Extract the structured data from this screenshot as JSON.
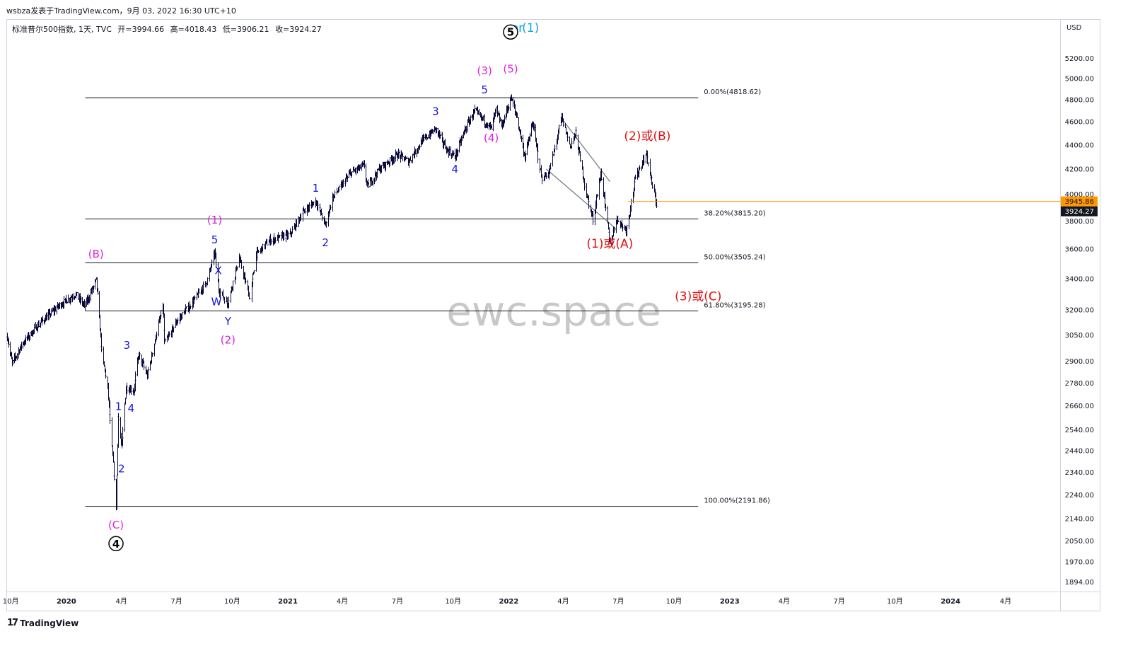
{
  "header": {
    "publish_line": "wsbza发表于TradingView.com，9月 03, 2022 16:30 UTC+10"
  },
  "ohlc": {
    "symbol_line": "标准普尔500指数, 1天, TVC",
    "open": "开=3994.66",
    "high": "高=4018.43",
    "low": "低=3906.21",
    "close": "收=3924.27"
  },
  "footer": {
    "logo": "17",
    "brand": "TradingView"
  },
  "watermark": "ewc.space",
  "colors": {
    "bars": "#0a0a3c",
    "magenta": "#e020e0",
    "blue": "#1515e0",
    "red": "#e01010",
    "cyan": "#10a8d8",
    "fib_line": "#131722",
    "price_line": "#ff9800",
    "trendline": "#787b86",
    "watermark": "#c8c8c8"
  },
  "chart_data": {
    "type": "candlestick-ohlc",
    "title": "标准普尔500指数, 1天, TVC",
    "currency": "USD",
    "y_scale": "log",
    "ylim": [
      1860,
      5600
    ],
    "x_range": [
      "2019-09-25",
      "2024-06-30"
    ],
    "y_ticks": [
      1894,
      1970,
      2050,
      2140,
      2240,
      2340,
      2440,
      2540,
      2660,
      2780,
      2900,
      3050,
      3200,
      3400,
      3600,
      3800,
      4000,
      4200,
      4400,
      4600,
      4800,
      5000,
      5200
    ],
    "y_tick_labels": [
      "1894.00",
      "1970.00",
      "2050.00",
      "2140.00",
      "2240.00",
      "2340.00",
      "2440.00",
      "2540.00",
      "2660.00",
      "2780.00",
      "2900.00",
      "3050.00",
      "3200.00",
      "3400.00",
      "3600.00",
      "3800.00",
      "4000.00",
      "4200.00",
      "4400.00",
      "4600.00",
      "4800.00",
      "5000.00",
      "5200.00"
    ],
    "x_ticks": [
      {
        "date": "2019-10-01",
        "label": "10月",
        "bold": false
      },
      {
        "date": "2020-01-01",
        "label": "2020",
        "bold": true
      },
      {
        "date": "2020-04-01",
        "label": "4月",
        "bold": false
      },
      {
        "date": "2020-07-01",
        "label": "7月",
        "bold": false
      },
      {
        "date": "2020-10-01",
        "label": "10月",
        "bold": false
      },
      {
        "date": "2021-01-01",
        "label": "2021",
        "bold": true
      },
      {
        "date": "2021-04-01",
        "label": "4月",
        "bold": false
      },
      {
        "date": "2021-07-01",
        "label": "7月",
        "bold": false
      },
      {
        "date": "2021-10-01",
        "label": "10月",
        "bold": false
      },
      {
        "date": "2022-01-01",
        "label": "2022",
        "bold": true
      },
      {
        "date": "2022-04-01",
        "label": "4月",
        "bold": false
      },
      {
        "date": "2022-07-01",
        "label": "7月",
        "bold": false
      },
      {
        "date": "2022-10-01",
        "label": "10月",
        "bold": false
      },
      {
        "date": "2023-01-01",
        "label": "2023",
        "bold": true
      },
      {
        "date": "2023-04-01",
        "label": "4月",
        "bold": false
      },
      {
        "date": "2023-07-01",
        "label": "7月",
        "bold": false
      },
      {
        "date": "2023-10-01",
        "label": "10月",
        "bold": false
      },
      {
        "date": "2024-01-01",
        "label": "2024",
        "bold": true
      },
      {
        "date": "2024-04-01",
        "label": "4月",
        "bold": false
      }
    ],
    "price_path": [
      [
        "2019-09-25",
        3040
      ],
      [
        "2019-10-03",
        2887
      ],
      [
        "2019-10-20",
        3000
      ],
      [
        "2019-11-15",
        3110
      ],
      [
        "2019-12-20",
        3230
      ],
      [
        "2020-01-15",
        3300
      ],
      [
        "2020-01-31",
        3225
      ],
      [
        "2020-02-19",
        3390
      ],
      [
        "2020-02-28",
        2950
      ],
      [
        "2020-03-09",
        2750
      ],
      [
        "2020-03-16",
        2450
      ],
      [
        "2020-03-23",
        2192
      ],
      [
        "2020-03-26",
        2620
      ],
      [
        "2020-04-01",
        2450
      ],
      [
        "2020-04-08",
        2760
      ],
      [
        "2020-04-21",
        2740
      ],
      [
        "2020-04-29",
        2940
      ],
      [
        "2020-05-13",
        2820
      ],
      [
        "2020-06-08",
        3230
      ],
      [
        "2020-06-11",
        3000
      ],
      [
        "2020-07-01",
        3130
      ],
      [
        "2020-07-31",
        3270
      ],
      [
        "2020-08-20",
        3380
      ],
      [
        "2020-09-02",
        3580
      ],
      [
        "2020-09-08",
        3330
      ],
      [
        "2020-09-23",
        3240
      ],
      [
        "2020-10-12",
        3540
      ],
      [
        "2020-10-30",
        3270
      ],
      [
        "2020-11-09",
        3560
      ],
      [
        "2020-12-01",
        3660
      ],
      [
        "2021-01-04",
        3700
      ],
      [
        "2021-01-25",
        3860
      ],
      [
        "2021-02-16",
        3950
      ],
      [
        "2021-03-04",
        3770
      ],
      [
        "2021-03-15",
        3970
      ],
      [
        "2021-04-15",
        4170
      ],
      [
        "2021-05-07",
        4230
      ],
      [
        "2021-05-12",
        4060
      ],
      [
        "2021-06-01",
        4200
      ],
      [
        "2021-07-01",
        4320
      ],
      [
        "2021-07-19",
        4260
      ],
      [
        "2021-08-10",
        4430
      ],
      [
        "2021-09-02",
        4540
      ],
      [
        "2021-09-20",
        4360
      ],
      [
        "2021-10-04",
        4300
      ],
      [
        "2021-10-20",
        4530
      ],
      [
        "2021-11-05",
        4700
      ],
      [
        "2021-11-30",
        4560
      ],
      [
        "2021-12-03",
        4540
      ],
      [
        "2021-12-10",
        4710
      ],
      [
        "2021-12-20",
        4560
      ],
      [
        "2022-01-04",
        4818
      ],
      [
        "2022-01-14",
        4640
      ],
      [
        "2022-01-27",
        4300
      ],
      [
        "2022-02-09",
        4590
      ],
      [
        "2022-02-24",
        4120
      ],
      [
        "2022-03-08",
        4170
      ],
      [
        "2022-03-29",
        4637
      ],
      [
        "2022-04-12",
        4390
      ],
      [
        "2022-04-21",
        4500
      ],
      [
        "2022-05-09",
        3990
      ],
      [
        "2022-05-20",
        3810
      ],
      [
        "2022-06-02",
        4170
      ],
      [
        "2022-06-17",
        3636
      ],
      [
        "2022-06-28",
        3820
      ],
      [
        "2022-07-14",
        3730
      ],
      [
        "2022-07-29",
        4130
      ],
      [
        "2022-08-16",
        4325
      ],
      [
        "2022-08-26",
        4060
      ],
      [
        "2022-09-02",
        3924
      ]
    ],
    "last_price": 3924.27,
    "last_price_label": "3924.27",
    "price_marker": 3945.86,
    "price_marker_label": "3945.86",
    "fibonacci": {
      "start": "2020-02-01",
      "end": "2022-11-10",
      "levels": [
        {
          "price": 4818.62,
          "label": "0.00%(4818.62)"
        },
        {
          "price": 3815.2,
          "label": "38.20%(3815.20)"
        },
        {
          "price": 3505.24,
          "label": "50.00%(3505.24)"
        },
        {
          "price": 3195.28,
          "label": "61.80%(3195.28)"
        },
        {
          "price": 2191.86,
          "label": "100.00%(2191.86)"
        }
      ]
    },
    "annotations": [
      {
        "text": "(B)",
        "date": "2020-02-19",
        "price": 3540,
        "color": "magenta"
      },
      {
        "text": "(C)",
        "date": "2020-03-23",
        "price": 2100,
        "color": "magenta"
      },
      {
        "text": "1",
        "date": "2020-03-27",
        "price": 2640,
        "color": "blue"
      },
      {
        "text": "2",
        "date": "2020-04-01",
        "price": 2340,
        "color": "blue"
      },
      {
        "text": "3",
        "date": "2020-04-10",
        "price": 2970,
        "color": "blue"
      },
      {
        "text": "4",
        "date": "2020-04-17",
        "price": 2630,
        "color": "blue"
      },
      {
        "text": "5",
        "date": "2020-09-02",
        "price": 3640,
        "color": "blue"
      },
      {
        "text": "(1)",
        "date": "2020-09-02",
        "price": 3780,
        "color": "magenta"
      },
      {
        "text": "X",
        "date": "2020-09-08",
        "price": 3430,
        "color": "blue"
      },
      {
        "text": "W",
        "date": "2020-09-05",
        "price": 3230,
        "color": "blue"
      },
      {
        "text": "Y",
        "date": "2020-09-24",
        "price": 3110,
        "color": "blue"
      },
      {
        "text": "(2)",
        "date": "2020-09-24",
        "price": 3000,
        "color": "magenta"
      },
      {
        "text": "1",
        "date": "2021-02-16",
        "price": 4020,
        "color": "blue"
      },
      {
        "text": "2",
        "date": "2021-03-04",
        "price": 3620,
        "color": "blue"
      },
      {
        "text": "3",
        "date": "2021-09-02",
        "price": 4660,
        "color": "blue"
      },
      {
        "text": "4",
        "date": "2021-10-04",
        "price": 4170,
        "color": "blue"
      },
      {
        "text": "5",
        "date": "2021-11-22",
        "price": 4860,
        "color": "blue"
      },
      {
        "text": "(3)",
        "date": "2021-11-22",
        "price": 5040,
        "color": "magenta"
      },
      {
        "text": "(4)",
        "date": "2021-12-03",
        "price": 4430,
        "color": "magenta"
      },
      {
        "text": "(5)",
        "date": "2022-01-04",
        "price": 5060,
        "color": "magenta"
      },
      {
        "text": "or",
        "date": "2022-01-15",
        "price": 5470,
        "color": "cyan"
      },
      {
        "text": "(1)",
        "date": "2022-02-06",
        "price": 5470,
        "color": "cyan"
      },
      {
        "text": "(2)或(B)",
        "date": "2022-08-18",
        "price": 4440,
        "color": "red"
      },
      {
        "text": "(1)或(A)",
        "date": "2022-06-17",
        "price": 3610,
        "color": "red"
      },
      {
        "text": "(3)或(C)",
        "date": "2022-11-10",
        "price": 3260,
        "color": "red"
      }
    ],
    "circled_labels": [
      {
        "text": "5",
        "date": "2022-01-04",
        "price": 5470
      },
      {
        "text": "4",
        "date": "2020-03-23",
        "price": 2040
      }
    ],
    "trendlines": [
      [
        [
          "2022-03-28",
          4640
        ],
        [
          "2022-06-17",
          4100
        ]
      ],
      [
        [
          "2022-03-04",
          4200
        ],
        [
          "2022-06-28",
          3740
        ]
      ]
    ]
  }
}
